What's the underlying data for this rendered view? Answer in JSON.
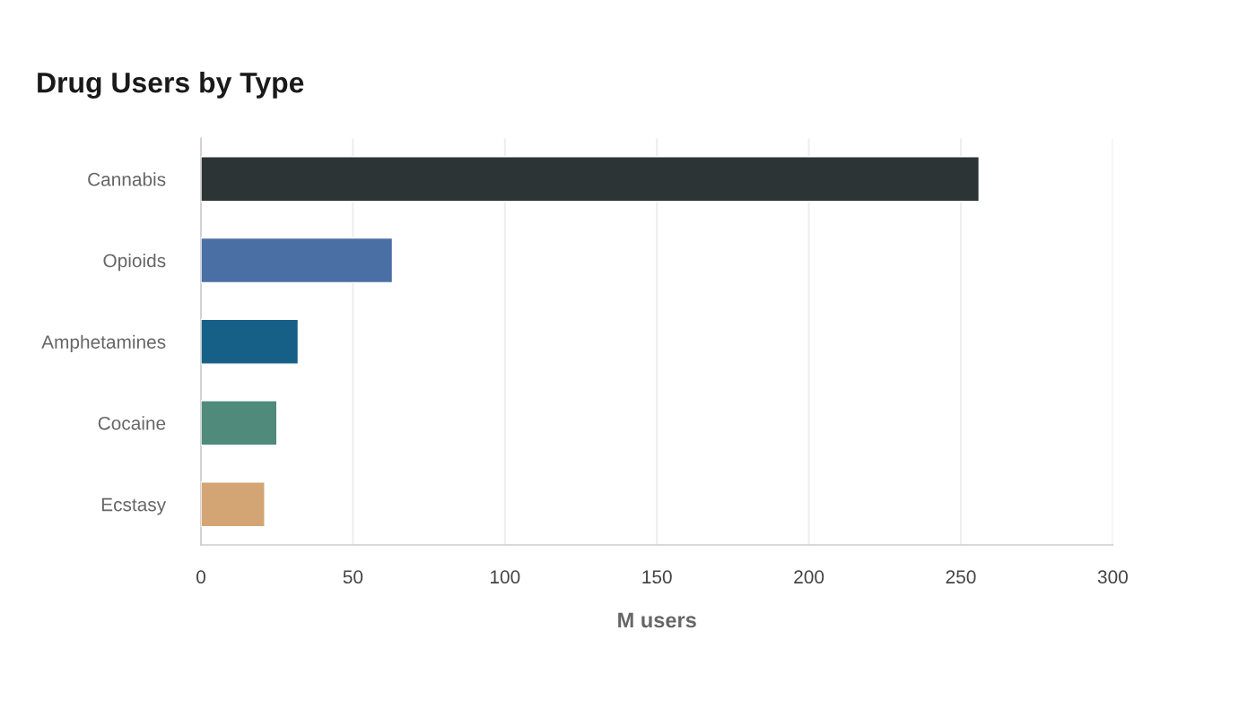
{
  "chart_data": {
    "type": "bar",
    "orientation": "horizontal",
    "title": "Drug Users by Type",
    "xlabel": "M users",
    "categories": [
      "Cannabis",
      "Opioids",
      "Amphetamines",
      "Cocaine",
      "Ecstasy"
    ],
    "values": [
      256,
      63,
      32,
      25,
      21
    ],
    "colors": [
      "#2d3436",
      "#4a6fa5",
      "#166088",
      "#4f8a7a",
      "#d4a574"
    ],
    "xlim": [
      0,
      300
    ],
    "xticks": [
      0,
      50,
      100,
      150,
      200,
      250,
      300
    ],
    "grid": "x"
  }
}
